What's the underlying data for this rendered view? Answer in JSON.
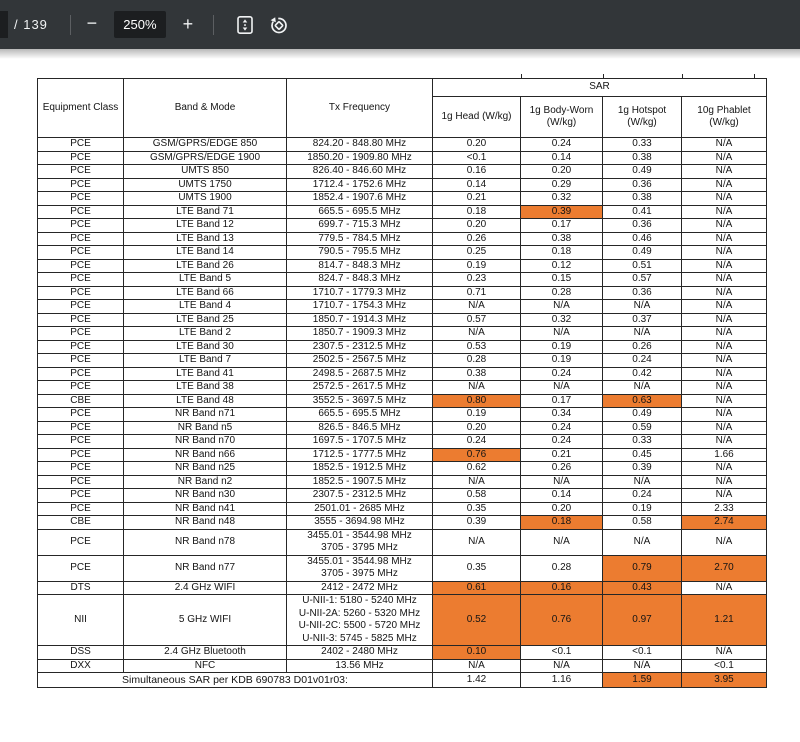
{
  "colors": {
    "toolbar_bg": "#323639",
    "chip_bg": "#1c1e20",
    "highlight_orange": "#EC7C30",
    "table_border": "#262626"
  },
  "toolbar": {
    "page_count_label": "/ 139",
    "zoom_out_label": "−",
    "zoom_level": "250%",
    "zoom_in_label": "+",
    "icons": [
      "fit-to-page-icon",
      "rotate-counterclockwise-icon"
    ]
  },
  "table": {
    "headers": {
      "equipment_class": "Equipment Class",
      "band_mode": "Band & Mode",
      "tx_frequency": "Tx Frequency",
      "sar_group": "SAR",
      "sar_columns": [
        "1g Head (W/kg)",
        "1g Body-Worn (W/kg)",
        "1g Hotspot (W/kg)",
        "10g Phablet (W/kg)"
      ]
    },
    "rows": [
      {
        "ec": "PCE",
        "band": "GSM/GPRS/EDGE 850",
        "freq": "824.20 - 848.80 MHz",
        "vals": [
          "0.20",
          "0.24",
          "0.33",
          "N/A"
        ],
        "hl": [
          false,
          false,
          false,
          false
        ]
      },
      {
        "ec": "PCE",
        "band": "GSM/GPRS/EDGE 1900",
        "freq": "1850.20 - 1909.80 MHz",
        "vals": [
          "<0.1",
          "0.14",
          "0.38",
          "N/A"
        ],
        "hl": [
          false,
          false,
          false,
          false
        ]
      },
      {
        "ec": "PCE",
        "band": "UMTS 850",
        "freq": "826.40 - 846.60 MHz",
        "vals": [
          "0.16",
          "0.20",
          "0.49",
          "N/A"
        ],
        "hl": [
          false,
          false,
          false,
          false
        ]
      },
      {
        "ec": "PCE",
        "band": "UMTS 1750",
        "freq": "1712.4 - 1752.6 MHz",
        "vals": [
          "0.14",
          "0.29",
          "0.36",
          "N/A"
        ],
        "hl": [
          false,
          false,
          false,
          false
        ]
      },
      {
        "ec": "PCE",
        "band": "UMTS 1900",
        "freq": "1852.4 - 1907.6 MHz",
        "vals": [
          "0.21",
          "0.32",
          "0.38",
          "N/A"
        ],
        "hl": [
          false,
          false,
          false,
          false
        ]
      },
      {
        "ec": "PCE",
        "band": "LTE Band 71",
        "freq": "665.5 - 695.5 MHz",
        "vals": [
          "0.18",
          "0.39",
          "0.41",
          "N/A"
        ],
        "hl": [
          false,
          true,
          false,
          false
        ]
      },
      {
        "ec": "PCE",
        "band": "LTE Band 12",
        "freq": "699.7 - 715.3 MHz",
        "vals": [
          "0.20",
          "0.17",
          "0.36",
          "N/A"
        ],
        "hl": [
          false,
          false,
          false,
          false
        ]
      },
      {
        "ec": "PCE",
        "band": "LTE Band 13",
        "freq": "779.5 - 784.5 MHz",
        "vals": [
          "0.26",
          "0.38",
          "0.46",
          "N/A"
        ],
        "hl": [
          false,
          false,
          false,
          false
        ]
      },
      {
        "ec": "PCE",
        "band": "LTE Band 14",
        "freq": "790.5 - 795.5 MHz",
        "vals": [
          "0.25",
          "0.18",
          "0.49",
          "N/A"
        ],
        "hl": [
          false,
          false,
          false,
          false
        ]
      },
      {
        "ec": "PCE",
        "band": "LTE Band 26",
        "freq": "814.7 - 848.3 MHz",
        "vals": [
          "0.19",
          "0.12",
          "0.51",
          "N/A"
        ],
        "hl": [
          false,
          false,
          false,
          false
        ]
      },
      {
        "ec": "PCE",
        "band": "LTE Band 5",
        "freq": "824.7 - 848.3 MHz",
        "vals": [
          "0.23",
          "0.15",
          "0.57",
          "N/A"
        ],
        "hl": [
          false,
          false,
          false,
          false
        ]
      },
      {
        "ec": "PCE",
        "band": "LTE Band 66",
        "freq": "1710.7 - 1779.3 MHz",
        "vals": [
          "0.71",
          "0.28",
          "0.36",
          "N/A"
        ],
        "hl": [
          false,
          false,
          false,
          false
        ]
      },
      {
        "ec": "PCE",
        "band": "LTE Band 4",
        "freq": "1710.7 - 1754.3 MHz",
        "vals": [
          "N/A",
          "N/A",
          "N/A",
          "N/A"
        ],
        "hl": [
          false,
          false,
          false,
          false
        ]
      },
      {
        "ec": "PCE",
        "band": "LTE Band 25",
        "freq": "1850.7 - 1914.3 MHz",
        "vals": [
          "0.57",
          "0.32",
          "0.37",
          "N/A"
        ],
        "hl": [
          false,
          false,
          false,
          false
        ]
      },
      {
        "ec": "PCE",
        "band": "LTE Band 2",
        "freq": "1850.7 - 1909.3 MHz",
        "vals": [
          "N/A",
          "N/A",
          "N/A",
          "N/A"
        ],
        "hl": [
          false,
          false,
          false,
          false
        ]
      },
      {
        "ec": "PCE",
        "band": "LTE Band 30",
        "freq": "2307.5 - 2312.5 MHz",
        "vals": [
          "0.53",
          "0.19",
          "0.26",
          "N/A"
        ],
        "hl": [
          false,
          false,
          false,
          false
        ]
      },
      {
        "ec": "PCE",
        "band": "LTE Band 7",
        "freq": "2502.5 - 2567.5 MHz",
        "vals": [
          "0.28",
          "0.19",
          "0.24",
          "N/A"
        ],
        "hl": [
          false,
          false,
          false,
          false
        ]
      },
      {
        "ec": "PCE",
        "band": "LTE Band 41",
        "freq": "2498.5 - 2687.5 MHz",
        "vals": [
          "0.38",
          "0.24",
          "0.42",
          "N/A"
        ],
        "hl": [
          false,
          false,
          false,
          false
        ]
      },
      {
        "ec": "PCE",
        "band": "LTE Band 38",
        "freq": "2572.5 - 2617.5 MHz",
        "vals": [
          "N/A",
          "N/A",
          "N/A",
          "N/A"
        ],
        "hl": [
          false,
          false,
          false,
          false
        ]
      },
      {
        "ec": "CBE",
        "band": "LTE Band 48",
        "freq": "3552.5 - 3697.5 MHz",
        "vals": [
          "0.80",
          "0.17",
          "0.63",
          "N/A"
        ],
        "hl": [
          true,
          false,
          true,
          false
        ]
      },
      {
        "ec": "PCE",
        "band": "NR Band n71",
        "freq": "665.5 - 695.5 MHz",
        "vals": [
          "0.19",
          "0.34",
          "0.49",
          "N/A"
        ],
        "hl": [
          false,
          false,
          false,
          false
        ]
      },
      {
        "ec": "PCE",
        "band": "NR Band n5",
        "freq": "826.5 - 846.5 MHz",
        "vals": [
          "0.20",
          "0.24",
          "0.59",
          "N/A"
        ],
        "hl": [
          false,
          false,
          false,
          false
        ]
      },
      {
        "ec": "PCE",
        "band": "NR Band n70",
        "freq": "1697.5 - 1707.5 MHz",
        "vals": [
          "0.24",
          "0.24",
          "0.33",
          "N/A"
        ],
        "hl": [
          false,
          false,
          false,
          false
        ]
      },
      {
        "ec": "PCE",
        "band": "NR Band n66",
        "freq": "1712.5 - 1777.5 MHz",
        "vals": [
          "0.76",
          "0.21",
          "0.45",
          "1.66"
        ],
        "hl": [
          true,
          false,
          false,
          false
        ]
      },
      {
        "ec": "PCE",
        "band": "NR Band n25",
        "freq": "1852.5 - 1912.5 MHz",
        "vals": [
          "0.62",
          "0.26",
          "0.39",
          "N/A"
        ],
        "hl": [
          false,
          false,
          false,
          false
        ]
      },
      {
        "ec": "PCE",
        "band": "NR Band n2",
        "freq": "1852.5 - 1907.5 MHz",
        "vals": [
          "N/A",
          "N/A",
          "N/A",
          "N/A"
        ],
        "hl": [
          false,
          false,
          false,
          false
        ]
      },
      {
        "ec": "PCE",
        "band": "NR Band n30",
        "freq": "2307.5 - 2312.5 MHz",
        "vals": [
          "0.58",
          "0.14",
          "0.24",
          "N/A"
        ],
        "hl": [
          false,
          false,
          false,
          false
        ]
      },
      {
        "ec": "PCE",
        "band": "NR Band n41",
        "freq": "2501.01 - 2685 MHz",
        "vals": [
          "0.35",
          "0.20",
          "0.19",
          "2.33"
        ],
        "hl": [
          false,
          false,
          false,
          false
        ]
      },
      {
        "ec": "CBE",
        "band": "NR Band n48",
        "freq": "3555 - 3694.98 MHz",
        "vals": [
          "0.39",
          "0.18",
          "0.58",
          "2.74"
        ],
        "hl": [
          false,
          true,
          false,
          true
        ]
      },
      {
        "ec": "PCE",
        "band": "NR Band n78",
        "freq": "3455.01 - 3544.98 MHz\n3705 - 3795 MHz",
        "vals": [
          "N/A",
          "N/A",
          "N/A",
          "N/A"
        ],
        "hl": [
          false,
          false,
          false,
          false
        ]
      },
      {
        "ec": "PCE",
        "band": "NR Band n77",
        "freq": "3455.01 - 3544.98 MHz\n3705 - 3975 MHz",
        "vals": [
          "0.35",
          "0.28",
          "0.79",
          "2.70"
        ],
        "hl": [
          false,
          false,
          true,
          true
        ]
      },
      {
        "ec": "DTS",
        "band": "2.4 GHz WIFI",
        "freq": "2412 - 2472 MHz",
        "vals": [
          "0.61",
          "0.16",
          "0.43",
          "N/A"
        ],
        "hl": [
          true,
          true,
          true,
          false
        ]
      },
      {
        "ec": "NII",
        "band": "5 GHz WIFI",
        "freq": "U-NII-1: 5180 - 5240 MHz\nU-NII-2A: 5260 - 5320 MHz\nU-NII-2C: 5500 - 5720 MHz\nU-NII-3: 5745 - 5825 MHz",
        "vals": [
          "0.52",
          "0.76",
          "0.97",
          "1.21"
        ],
        "hl": [
          true,
          true,
          true,
          true
        ]
      },
      {
        "ec": "DSS",
        "band": "2.4 GHz Bluetooth",
        "freq": "2402 - 2480 MHz",
        "vals": [
          "0.10",
          "<0.1",
          "<0.1",
          "N/A"
        ],
        "hl": [
          true,
          false,
          false,
          false
        ]
      },
      {
        "ec": "DXX",
        "band": "NFC",
        "freq": "13.56 MHz",
        "vals": [
          "N/A",
          "N/A",
          "N/A",
          "<0.1"
        ],
        "hl": [
          false,
          false,
          false,
          false
        ]
      }
    ],
    "footer": {
      "label": "Simultaneous SAR per KDB 690783 D01v01r03:",
      "values": [
        "1.42",
        "1.16",
        "1.59",
        "3.95"
      ],
      "highlights": [
        false,
        false,
        true,
        true
      ]
    }
  }
}
